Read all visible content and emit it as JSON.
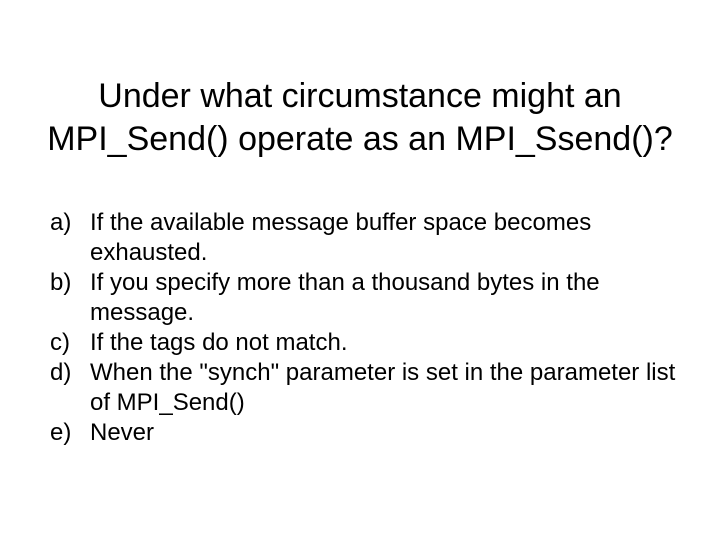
{
  "slide": {
    "title": "Under what circumstance might an MPI_Send() operate as an MPI_Ssend()?",
    "options": [
      {
        "marker": "a)",
        "text": "If the available message buffer space becomes exhausted."
      },
      {
        "marker": "b)",
        "text": "If you specify more than a thousand bytes in the message."
      },
      {
        "marker": "c)",
        "text": "If the tags do not match."
      },
      {
        "marker": "d)",
        "text": "When the \"synch\" parameter is set in the parameter list of MPI_Send()"
      },
      {
        "marker": "e)",
        "text": "Never"
      }
    ],
    "style": {
      "background_color": "#ffffff",
      "text_color": "#000000",
      "title_fontsize": 34,
      "option_fontsize": 24,
      "font_family": "Arial"
    }
  }
}
